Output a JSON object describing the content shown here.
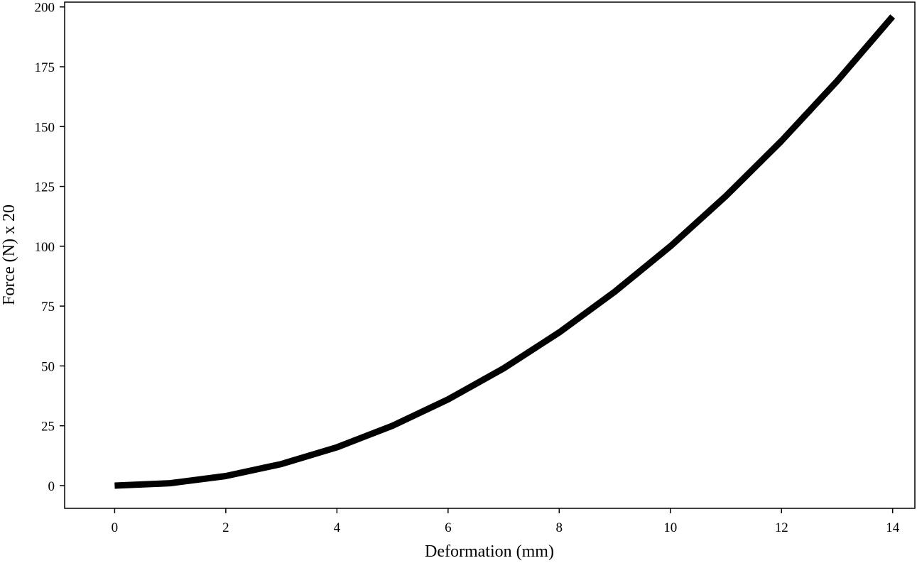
{
  "chart_data": {
    "type": "line",
    "title": "",
    "xlabel": "Deformation (mm)",
    "ylabel": "Force (N) x 20",
    "xlim": [
      -0.9,
      14.4
    ],
    "ylim": [
      -9.5,
      202
    ],
    "xticks": [
      0,
      2,
      4,
      6,
      8,
      10,
      12,
      14
    ],
    "yticks": [
      0,
      25,
      50,
      75,
      100,
      125,
      150,
      175,
      200
    ],
    "grid": false,
    "legend": "none",
    "series": [
      {
        "color": "#000000",
        "x": [
          0,
          1,
          2,
          3,
          4,
          5,
          6,
          7,
          8,
          9,
          10,
          11,
          12,
          13,
          14
        ],
        "y": [
          0,
          1,
          4,
          9,
          16,
          25,
          36,
          49,
          64,
          81,
          100,
          121,
          144,
          169,
          196
        ]
      }
    ]
  }
}
